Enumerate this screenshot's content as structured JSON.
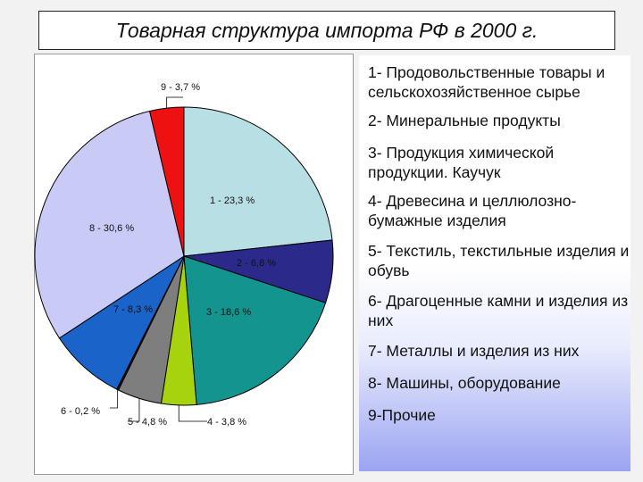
{
  "title": "Товарная структура импорта РФ в 2000 г.",
  "chart_data": {
    "type": "pie",
    "title": "Товарная структура импорта РФ в 2000 г.",
    "slices": [
      {
        "id": 1,
        "label": "1 - 23,3 %",
        "value": 23.3,
        "color": "#b8e0e4"
      },
      {
        "id": 2,
        "label": "2 - 6,8 %",
        "value": 6.8,
        "color": "#2b2a8a"
      },
      {
        "id": 3,
        "label": "3 - 18,6 %",
        "value": 18.6,
        "color": "#14948f"
      },
      {
        "id": 4,
        "label": "4 - 3,8 %",
        "value": 3.8,
        "color": "#a6d20e"
      },
      {
        "id": 5,
        "label": "5 - 4,8 %",
        "value": 4.8,
        "color": "#7e7e7e"
      },
      {
        "id": 6,
        "label": "6 - 0,2 %",
        "value": 0.2,
        "color": "#111111"
      },
      {
        "id": 7,
        "label": "7 - 8,3 %",
        "value": 8.3,
        "color": "#1a63c8"
      },
      {
        "id": 8,
        "label": "8 - 30,6 %",
        "value": 30.6,
        "color": "#c9caf6"
      },
      {
        "id": 9,
        "label": "9 - 3,7 %",
        "value": 3.7,
        "color": "#ee1111"
      }
    ],
    "legend": [
      "1- Продовольственные товары и сельскохозяйственное сырье",
      "2- Минеральные продукты",
      "3- Продукция химической продукции. Каучук",
      "4- Древесина и целлюлозно-бумажные изделия",
      "5- Текстиль, текстильные изделия и обувь",
      "6- Драгоценные камни и изделия из них",
      "7- Металлы и изделия из них",
      "8- Машины, оборудование",
      "9-Прочие"
    ],
    "legend_position": "right"
  }
}
